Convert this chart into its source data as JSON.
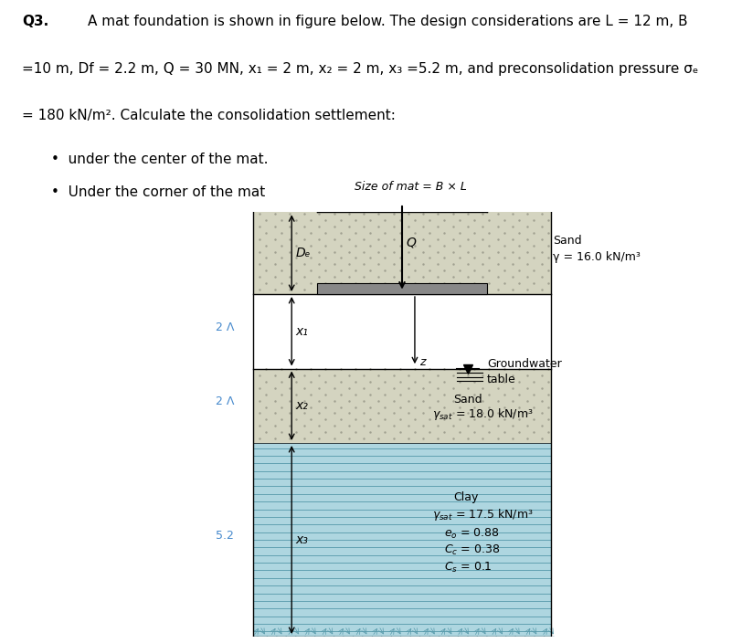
{
  "title_text": "Q3.",
  "header_line1": "A mat foundation is shown in figure below. The design considerations are L = 12 m, B",
  "header_line2": "=10 m, Df = 2.2 m, Q = 30 MN, x₁ = 2 m, x₂ = 2 m, x₃ =5.2 m, and preconsolidation pressure σₑ",
  "header_line3": "= 180 kN/m². Calculate the consolidation settlement:",
  "bullet1": "under the center of the mat.",
  "bullet2": "Under the corner of the mat",
  "fig_label": "Size of mat = B × L",
  "sand_label1": "Sand",
  "sand_gamma1": "γ = 16.0 kN/m³",
  "gw_label": "Groundwater",
  "gw_label2": "table",
  "sand_label2": "Sand",
  "sand_gamma2": "γₛₐₜ = 18.0 kN/m³",
  "clay_label": "Clay",
  "clay_gamma": "γₛₐₜ = 17.5 kN/m³",
  "clay_e0": "eₒ = 0.88",
  "clay_cc": "Cₑ = 0.38",
  "clay_cs": "Cₛ = 0.1",
  "df_label": "Dₑ",
  "x1_label": "x₁",
  "x2_label": "x₂",
  "x3_label": "x₃",
  "z_label": "z",
  "q_label": "Q",
  "dim_label1": "2 Λ",
  "dim_label2": "2 Λ",
  "dim_label3": "5.2",
  "bg_color": "#ffffff",
  "sand_top_color": "#d8d8c8",
  "sand_mid_color": "#d8d8c8",
  "clay_color": "#b8e0e8",
  "rock_color": "#c8e8f0",
  "mat_color": "#888888",
  "mat_top_color": "#cccccc",
  "arrow_color": "#000000",
  "blue_annot_color": "#4488cc"
}
